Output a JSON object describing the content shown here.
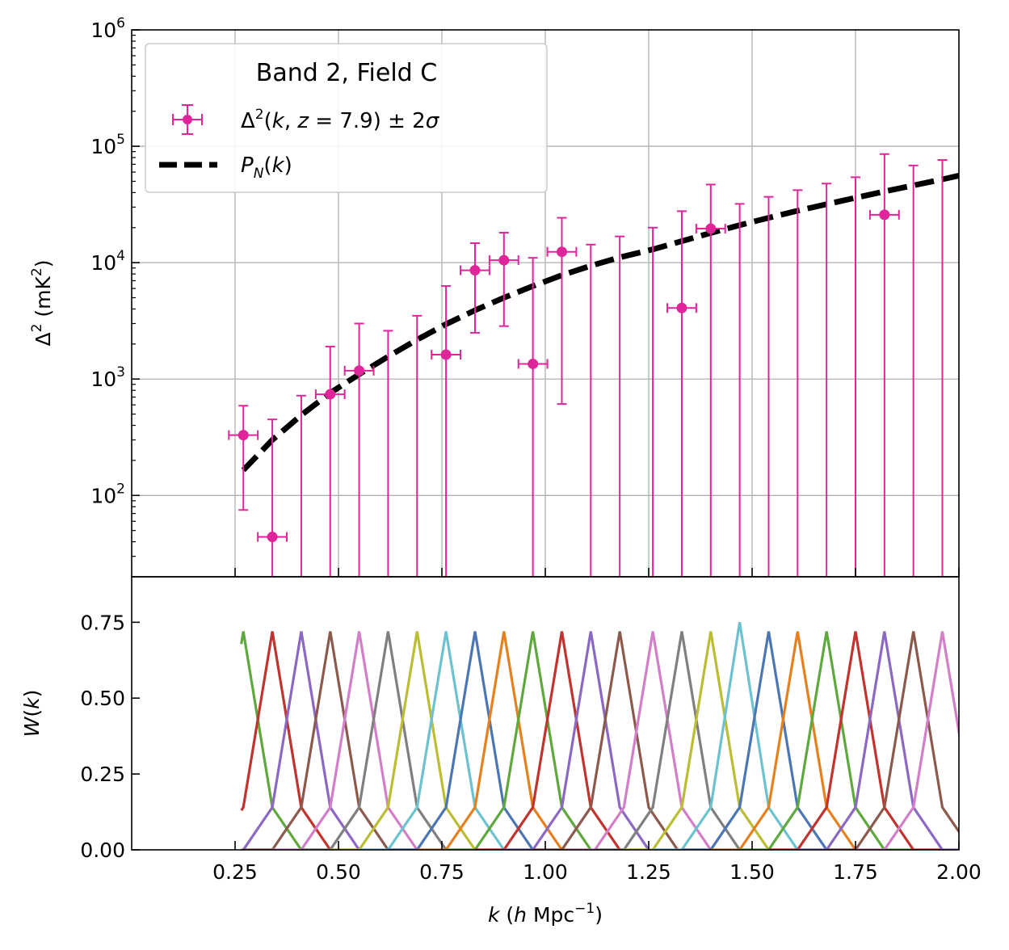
{
  "chart_data": [
    {
      "type": "scatter",
      "panel": "top",
      "yscale": "log",
      "xlim": [
        0.0,
        2.0
      ],
      "ylim": [
        20,
        1000000
      ],
      "ylabel": "Δ² (mK²)",
      "grid": true,
      "legend": {
        "placement": "top-left",
        "title": "Band 2, Field C",
        "entries": [
          {
            "key": "data",
            "label": "Δ²(k, z = 7.9) ± 2σ",
            "color": "#e0249a"
          },
          {
            "key": "noise",
            "label": "P_N(k)",
            "color": "#000000"
          }
        ]
      },
      "yticks": [
        {
          "value": 100,
          "exp": "2"
        },
        {
          "value": 1000,
          "exp": "3"
        },
        {
          "value": 10000,
          "exp": "4"
        },
        {
          "value": 100000,
          "exp": "5"
        },
        {
          "value": 1000000,
          "exp": "6"
        }
      ],
      "points": [
        {
          "x": 0.27,
          "y": 330,
          "lo": 75,
          "hi": 590
        },
        {
          "x": 0.34,
          "y": 44,
          "lo": 20,
          "hi": 450
        },
        {
          "x": 0.41,
          "y": null,
          "lo": 20,
          "hi": 720
        },
        {
          "x": 0.48,
          "y": 740,
          "lo": 20,
          "hi": 1900
        },
        {
          "x": 0.55,
          "y": 1180,
          "lo": 20,
          "hi": 3000
        },
        {
          "x": 0.62,
          "y": null,
          "lo": 20,
          "hi": 2600
        },
        {
          "x": 0.69,
          "y": null,
          "lo": 20,
          "hi": 3500
        },
        {
          "x": 0.76,
          "y": 1620,
          "lo": 20,
          "hi": 6300
        },
        {
          "x": 0.83,
          "y": 8600,
          "lo": 2500,
          "hi": 14700
        },
        {
          "x": 0.9,
          "y": 10500,
          "lo": 2850,
          "hi": 18100
        },
        {
          "x": 0.97,
          "y": 1350,
          "lo": 20,
          "hi": 11000
        },
        {
          "x": 1.04,
          "y": 12400,
          "lo": 610,
          "hi": 24300
        },
        {
          "x": 1.11,
          "y": null,
          "lo": 20,
          "hi": 14300
        },
        {
          "x": 1.18,
          "y": null,
          "lo": 20,
          "hi": 16800
        },
        {
          "x": 1.26,
          "y": null,
          "lo": 20,
          "hi": 20000
        },
        {
          "x": 1.33,
          "y": 4080,
          "lo": 20,
          "hi": 27700
        },
        {
          "x": 1.4,
          "y": 19600,
          "lo": 20,
          "hi": 46900
        },
        {
          "x": 1.47,
          "y": null,
          "lo": 20,
          "hi": 32000
        },
        {
          "x": 1.54,
          "y": null,
          "lo": 20,
          "hi": 36800
        },
        {
          "x": 1.61,
          "y": null,
          "lo": 20,
          "hi": 42000
        },
        {
          "x": 1.68,
          "y": null,
          "lo": 20,
          "hi": 47800
        },
        {
          "x": 1.75,
          "y": null,
          "lo": 20,
          "hi": 54200
        },
        {
          "x": 1.82,
          "y": 25800,
          "lo": 20,
          "hi": 85700
        },
        {
          "x": 1.89,
          "y": null,
          "lo": 20,
          "hi": 68400
        },
        {
          "x": 1.96,
          "y": null,
          "lo": 20,
          "hi": 76300
        }
      ],
      "xerr": 0.035,
      "noise_curve": {
        "x": [
          0.27,
          0.34,
          0.41,
          0.48,
          0.55,
          0.62,
          0.69,
          0.76,
          0.83,
          0.9,
          0.97,
          1.04,
          1.11,
          1.18,
          1.26,
          1.33,
          1.4,
          1.47,
          1.54,
          1.61,
          1.68,
          1.75,
          1.82,
          1.89,
          1.96,
          2.0
        ],
        "y": [
          165,
          300,
          490,
          760,
          1100,
          1560,
          2180,
          2960,
          3900,
          5000,
          6300,
          7800,
          9400,
          11100,
          13000,
          15300,
          18000,
          21000,
          24300,
          27900,
          31800,
          36100,
          40900,
          46100,
          52000,
          56000
        ]
      }
    },
    {
      "type": "line",
      "panel": "bottom",
      "xlim": [
        0.0,
        2.0
      ],
      "ylim": [
        0.0,
        0.9
      ],
      "xlabel": "k (h Mpc⁻¹)",
      "ylabel": "W(k)",
      "grid": false,
      "yticks": [
        "0.00",
        "0.25",
        "0.50",
        "0.75"
      ],
      "xticks": [
        "0.25",
        "0.50",
        "0.75",
        "1.00",
        "1.25",
        "1.50",
        "1.75",
        "2.00"
      ],
      "window_functions": {
        "centers": [
          0.27,
          0.34,
          0.41,
          0.48,
          0.55,
          0.62,
          0.69,
          0.76,
          0.83,
          0.9,
          0.97,
          1.04,
          1.11,
          1.18,
          1.26,
          1.33,
          1.4,
          1.47,
          1.54,
          1.61,
          1.68,
          1.75,
          1.82,
          1.89,
          1.96
        ],
        "peaks": [
          0.72,
          0.72,
          0.72,
          0.72,
          0.72,
          0.72,
          0.72,
          0.72,
          0.72,
          0.72,
          0.72,
          0.72,
          0.72,
          0.72,
          0.72,
          0.72,
          0.72,
          0.75,
          0.72,
          0.72,
          0.72,
          0.72,
          0.72,
          0.72,
          0.72
        ],
        "side_level": 0.14,
        "colors": [
          "#5ea83e",
          "#c0332e",
          "#8c68c2",
          "#8b5a4d",
          "#d37ec8",
          "#7f7f7f",
          "#bcbd33",
          "#6cc3cf",
          "#4c76b3",
          "#e6801f",
          "#5ea83e",
          "#c0332e",
          "#8c68c2",
          "#8b5a4d",
          "#d37ec8",
          "#7f7f7f",
          "#bcbd33",
          "#6cc3cf",
          "#4c76b3",
          "#e6801f",
          "#5ea83e",
          "#c0332e",
          "#8c68c2",
          "#8b5a4d",
          "#d37ec8"
        ]
      }
    }
  ]
}
